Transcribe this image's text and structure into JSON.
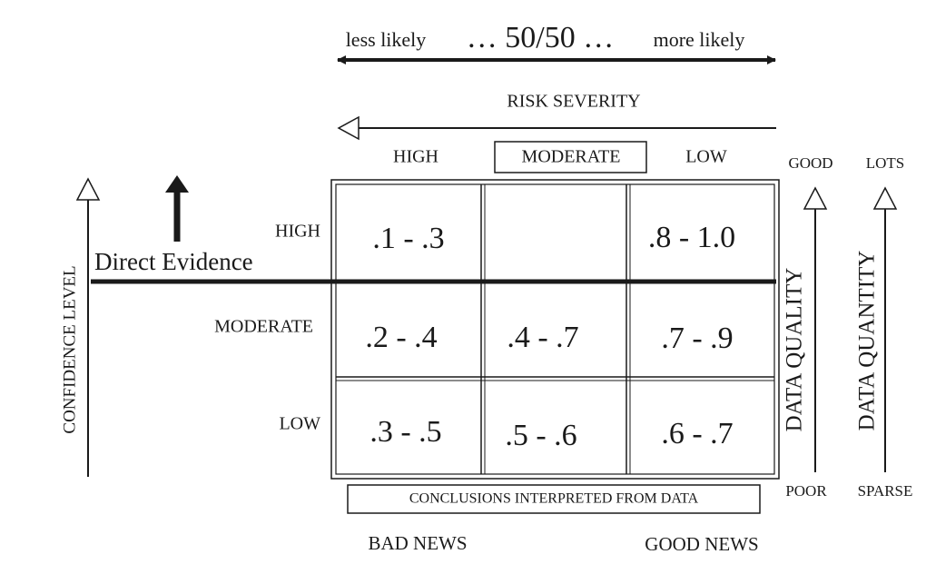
{
  "likelihood": {
    "left": "less likely",
    "center": "… 50/50 …",
    "right": "more likely"
  },
  "risk_severity": {
    "title": "RISK SEVERITY",
    "columns": [
      "HIGH",
      "MODERATE",
      "LOW"
    ]
  },
  "confidence_level": {
    "title": "CONFIDENCE LEVEL",
    "rows": [
      "HIGH",
      "MODERATE",
      "LOW"
    ]
  },
  "table": {
    "rows": [
      [
        ".1 - .3",
        null,
        ".8 - 1.0"
      ],
      [
        ".2 - .4",
        ".4 - .7",
        ".7 - .9"
      ],
      [
        ".3 - .5",
        ".5 - .6",
        ".6 - .7"
      ]
    ]
  },
  "direct_evidence": "Direct Evidence",
  "data_quality": {
    "title": "DATA QUALITY",
    "top": "GOOD",
    "bottom": "POOR"
  },
  "data_quantity": {
    "title": "DATA QUANTITY",
    "top": "LOTS",
    "bottom": "SPARSE"
  },
  "conclusions": "CONCLUSIONS INTERPRETED FROM DATA",
  "outcomes": {
    "left": "BAD NEWS",
    "right": "GOOD NEWS"
  }
}
